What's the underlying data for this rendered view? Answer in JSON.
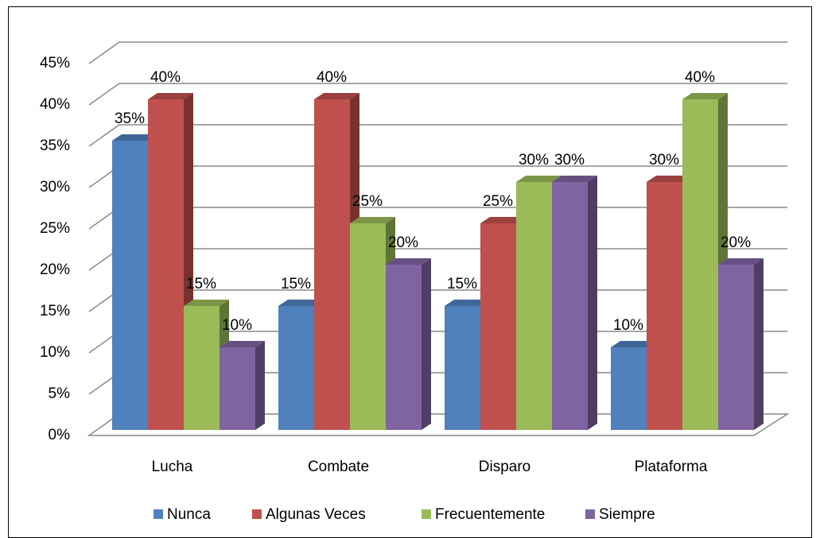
{
  "chart_data": {
    "type": "bar3d",
    "categories": [
      "Lucha",
      "Combate",
      "Disparo",
      "Plataforma"
    ],
    "series": [
      {
        "name": "Nunca",
        "color": "#4f81bd",
        "values": [
          35,
          15,
          15,
          10
        ],
        "value_labels": [
          "35%",
          "15%",
          "15%",
          "10%"
        ]
      },
      {
        "name": "Algunas Veces",
        "color": "#c0504d",
        "values": [
          40,
          40,
          25,
          30
        ],
        "value_labels": [
          "40%",
          "40%",
          "25%",
          "30%"
        ]
      },
      {
        "name": "Frecuentemente",
        "color": "#9bbb59",
        "values": [
          15,
          25,
          30,
          40
        ],
        "value_labels": [
          "15%",
          "25%",
          "30%",
          "40%"
        ]
      },
      {
        "name": "Siempre",
        "color": "#8064a2",
        "values": [
          10,
          20,
          30,
          20
        ],
        "value_labels": [
          "10%",
          "20%",
          "30%",
          "20%"
        ]
      }
    ],
    "ylim": [
      0,
      45
    ],
    "yticks": [
      {
        "value": 0,
        "label": "0%"
      },
      {
        "value": 5,
        "label": "5%"
      },
      {
        "value": 10,
        "label": "10%"
      },
      {
        "value": 15,
        "label": "15%"
      },
      {
        "value": 20,
        "label": "20%"
      },
      {
        "value": 25,
        "label": "25%"
      },
      {
        "value": 30,
        "label": "30%"
      },
      {
        "value": 35,
        "label": "35%"
      },
      {
        "value": 40,
        "label": "40%"
      },
      {
        "value": 45,
        "label": "45%"
      }
    ],
    "grid": true,
    "legend": "bottom"
  }
}
